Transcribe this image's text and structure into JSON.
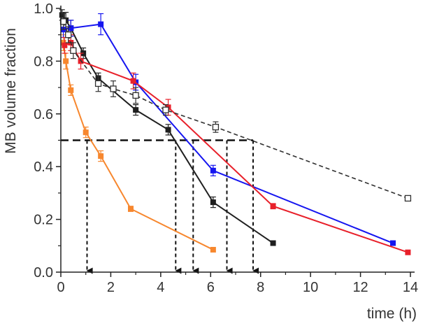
{
  "chart_data": {
    "type": "scatter",
    "xlabel": "time (h)",
    "ylabel": "MB volume fraction",
    "xlim": [
      0,
      14
    ],
    "ylim": [
      0,
      1.0
    ],
    "x_ticks": [
      0,
      2,
      4,
      6,
      8,
      10,
      12,
      14
    ],
    "x_tick_labels": [
      "0",
      "2",
      "4",
      "6",
      "8",
      "10",
      "12",
      "14"
    ],
    "y_ticks": [
      0.0,
      0.2,
      0.4,
      0.6,
      0.8,
      1.0
    ],
    "y_tick_labels": [
      "0.0",
      "0.2",
      "0.4",
      "0.6",
      "0.8",
      "1.0"
    ],
    "grid": false,
    "legend": "none",
    "series": [
      {
        "color": "#f7872e",
        "marker": "filled-square",
        "line": "solid",
        "points": [
          {
            "x": 0.1,
            "y": 0.87,
            "err": 0.03
          },
          {
            "x": 0.2,
            "y": 0.8,
            "err": 0.03
          },
          {
            "x": 0.4,
            "y": 0.69,
            "err": 0.02
          },
          {
            "x": 1.0,
            "y": 0.53,
            "err": 0.02
          },
          {
            "x": 1.6,
            "y": 0.44,
            "err": 0.02
          },
          {
            "x": 2.8,
            "y": 0.24,
            "err": 0.01
          },
          {
            "x": 6.1,
            "y": 0.085,
            "err": 0.0
          }
        ]
      },
      {
        "color": "#1f1f1f",
        "marker": "filled-square",
        "line": "solid",
        "points": [
          {
            "x": 0.05,
            "y": 0.975,
            "err": 0.02
          },
          {
            "x": 0.2,
            "y": 0.955,
            "err": 0.03
          },
          {
            "x": 0.4,
            "y": 0.925,
            "err": 0.03
          },
          {
            "x": 0.9,
            "y": 0.83,
            "err": 0.02
          },
          {
            "x": 1.5,
            "y": 0.735,
            "err": 0.02
          },
          {
            "x": 3.0,
            "y": 0.615,
            "err": 0.02
          },
          {
            "x": 4.3,
            "y": 0.54,
            "err": 0.02
          },
          {
            "x": 6.1,
            "y": 0.265,
            "err": 0.02
          },
          {
            "x": 8.5,
            "y": 0.11,
            "err": 0.0
          }
        ]
      },
      {
        "color": "#1515f0",
        "marker": "filled-square",
        "line": "solid",
        "points": [
          {
            "x": 0.1,
            "y": 0.92,
            "err": 0.03
          },
          {
            "x": 0.4,
            "y": 0.925,
            "err": 0.03
          },
          {
            "x": 1.6,
            "y": 0.94,
            "err": 0.04
          },
          {
            "x": 3.0,
            "y": 0.72,
            "err": 0.03
          },
          {
            "x": 6.1,
            "y": 0.385,
            "err": 0.02
          },
          {
            "x": 13.3,
            "y": 0.11,
            "err": 0.0
          }
        ]
      },
      {
        "color": "#e8202a",
        "marker": "filled-square",
        "line": "solid",
        "points": [
          {
            "x": 0.15,
            "y": 0.86,
            "err": 0.03
          },
          {
            "x": 0.4,
            "y": 0.87,
            "err": 0.03
          },
          {
            "x": 0.8,
            "y": 0.8,
            "err": 0.03
          },
          {
            "x": 2.9,
            "y": 0.725,
            "err": 0.03
          },
          {
            "x": 4.3,
            "y": 0.625,
            "err": 0.03
          },
          {
            "x": 8.5,
            "y": 0.25,
            "err": 0.01
          },
          {
            "x": 13.9,
            "y": 0.075,
            "err": 0.0
          }
        ]
      },
      {
        "color": "#303030",
        "marker": "open-square",
        "line": "dashed",
        "points": [
          {
            "x": 0.1,
            "y": 0.95,
            "err": 0.03
          },
          {
            "x": 0.3,
            "y": 0.9,
            "err": 0.03
          },
          {
            "x": 0.5,
            "y": 0.84,
            "err": 0.03
          },
          {
            "x": 1.5,
            "y": 0.715,
            "err": 0.03
          },
          {
            "x": 2.1,
            "y": 0.695,
            "err": 0.03
          },
          {
            "x": 3.0,
            "y": 0.67,
            "err": 0.03
          },
          {
            "x": 4.2,
            "y": 0.615,
            "err": 0.02
          },
          {
            "x": 6.2,
            "y": 0.55,
            "err": 0.02
          },
          {
            "x": 13.9,
            "y": 0.28,
            "err": 0.01
          }
        ]
      }
    ],
    "reference_lines": {
      "horizontal": {
        "y": 0.5,
        "x_from": 0,
        "x_to": 7.7
      },
      "vertical_arrows": [
        1.05,
        4.6,
        5.3,
        6.65,
        7.7
      ]
    }
  }
}
